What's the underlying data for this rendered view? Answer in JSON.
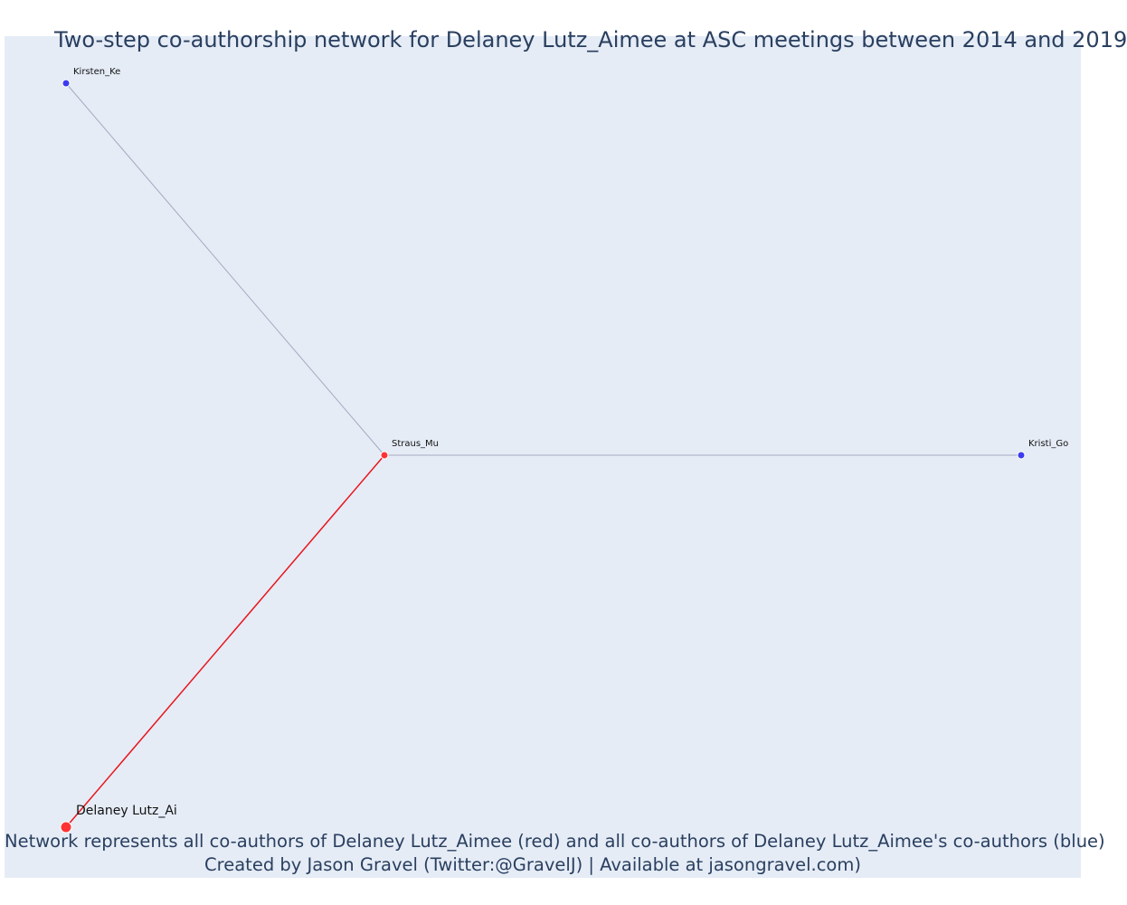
{
  "title": "Two-step co-authorship network for Delaney Lutz_Aimee at ASC meetings between 2014 and 2019",
  "caption": {
    "line1": "Network represents all co-authors of Delaney Lutz_Aimee (red) and all co-authors of Delaney Lutz_Aimee's co-authors (blue)",
    "line2": "Created by Jason Gravel (Twitter:@GravelJ) | Available at jasongravel.com)"
  },
  "colors": {
    "background": "#e5ecf6",
    "ego": "#ff3333",
    "first_degree": "#ff3333",
    "second_degree": "#3b3bf0",
    "ego_edge": "#e8161d",
    "other_edge": "#a7a9c0",
    "text": "#2a3f5f"
  },
  "nodes": [
    {
      "id": "Delaney Lutz_Ai",
      "label": "Delaney Lutz_Ai",
      "group": "ego"
    },
    {
      "id": "Straus_Mu",
      "label": "Straus_Mu",
      "group": "first_degree"
    },
    {
      "id": "Kirsten_Ke",
      "label": "Kirsten_Ke",
      "group": "second_degree"
    },
    {
      "id": "Kristi_Go",
      "label": "Kristi_Go",
      "group": "second_degree"
    }
  ],
  "edges": [
    {
      "source": "Delaney Lutz_Ai",
      "target": "Straus_Mu",
      "type": "ego"
    },
    {
      "source": "Straus_Mu",
      "target": "Kirsten_Ke",
      "type": "other"
    },
    {
      "source": "Straus_Mu",
      "target": "Kristi_Go",
      "type": "other"
    }
  ]
}
